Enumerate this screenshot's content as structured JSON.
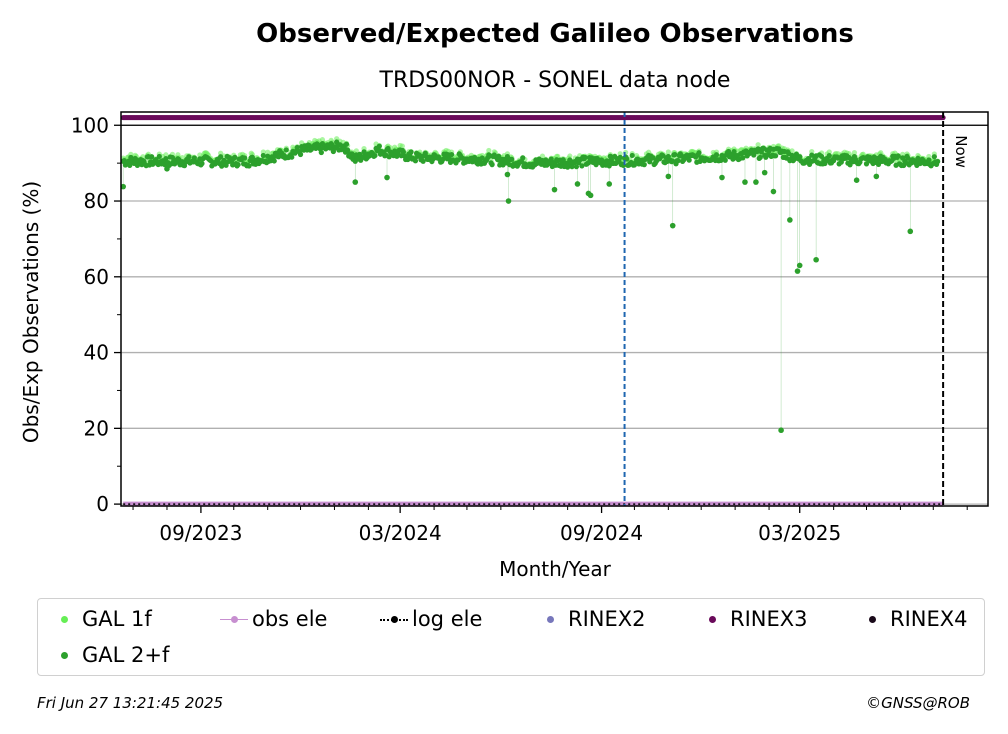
{
  "chart_data": {
    "type": "scatter",
    "title": "Observed/Expected Galileo Observations",
    "subtitle": "TRDS00NOR - SONEL data node",
    "xlabel": "Month/Year",
    "ylabel": "Obs/Exp Observations (%)",
    "x_tick_labels": [
      "09/2023",
      "03/2024",
      "09/2024",
      "03/2025"
    ],
    "y_ticks": [
      0,
      20,
      40,
      60,
      80,
      100
    ],
    "ylim": [
      -0.5,
      103.5
    ],
    "xlim": [
      "2023-06-20",
      "2025-08-20"
    ],
    "grid": "y",
    "now_label": "Now",
    "now_date": "2025-07-10",
    "event_date": "2024-09-22",
    "series": [
      {
        "name": "GAL 1f",
        "color": "#66ee55"
      },
      {
        "name": "GAL 2+f",
        "color": "#2ca02c",
        "daily_range": [
          "2023-06-22",
          "2025-07-05"
        ],
        "baseline_profile": [
          {
            "date": "2023-06-22",
            "value": 90.5
          },
          {
            "date": "2023-10-15",
            "value": 90.5
          },
          {
            "date": "2023-12-05",
            "value": 93.5
          },
          {
            "date": "2024-01-10",
            "value": 94.5
          },
          {
            "date": "2024-01-20",
            "value": 91.0
          },
          {
            "date": "2024-02-10",
            "value": 93.5
          },
          {
            "date": "2024-03-15",
            "value": 91.5
          },
          {
            "date": "2024-05-20",
            "value": 91.0
          },
          {
            "date": "2024-07-01",
            "value": 90.0
          },
          {
            "date": "2024-11-01",
            "value": 91.0
          },
          {
            "date": "2025-01-01",
            "value": 92.0
          },
          {
            "date": "2025-02-10",
            "value": 93.0
          },
          {
            "date": "2025-03-01",
            "value": 91.0
          },
          {
            "date": "2025-07-05",
            "value": 90.5
          }
        ],
        "outliers": [
          {
            "date": "2023-06-22",
            "value": 83.8
          },
          {
            "date": "2023-08-01",
            "value": 88.5
          },
          {
            "date": "2024-01-20",
            "value": 85.0
          },
          {
            "date": "2024-02-18",
            "value": 86.2
          },
          {
            "date": "2024-06-07",
            "value": 87.0
          },
          {
            "date": "2024-06-08",
            "value": 80.0
          },
          {
            "date": "2024-07-20",
            "value": 83.0
          },
          {
            "date": "2024-08-10",
            "value": 84.5
          },
          {
            "date": "2024-08-20",
            "value": 82.0
          },
          {
            "date": "2024-08-22",
            "value": 81.5
          },
          {
            "date": "2024-09-08",
            "value": 84.5
          },
          {
            "date": "2024-11-01",
            "value": 86.5
          },
          {
            "date": "2024-11-05",
            "value": 73.5
          },
          {
            "date": "2024-12-20",
            "value": 86.2
          },
          {
            "date": "2025-01-10",
            "value": 85.0
          },
          {
            "date": "2025-01-20",
            "value": 85.0
          },
          {
            "date": "2025-01-28",
            "value": 87.5
          },
          {
            "date": "2025-02-05",
            "value": 82.5
          },
          {
            "date": "2025-02-12",
            "value": 19.5
          },
          {
            "date": "2025-02-20",
            "value": 75.0
          },
          {
            "date": "2025-02-27",
            "value": 61.5
          },
          {
            "date": "2025-03-01",
            "value": 63.0
          },
          {
            "date": "2025-03-16",
            "value": 64.5
          },
          {
            "date": "2025-04-22",
            "value": 85.5
          },
          {
            "date": "2025-05-10",
            "value": 86.5
          },
          {
            "date": "2025-06-10",
            "value": 72.0
          }
        ]
      },
      {
        "name": "obs ele",
        "color": "#c78fd0",
        "value": 0,
        "line_range": [
          "2023-06-22",
          "2025-07-10"
        ]
      },
      {
        "name": "log ele",
        "color": "#000000",
        "value": 0,
        "line_range": [
          "2023-06-22",
          "2025-07-10"
        ]
      },
      {
        "name": "RINEX2",
        "color": "#7777bb"
      },
      {
        "name": "RINEX3",
        "color": "#6a0a5a",
        "value": 102,
        "daily_range": [
          "2023-06-22",
          "2025-07-10"
        ]
      },
      {
        "name": "RINEX4",
        "color": "#1a0a1a"
      }
    ],
    "legend_placement": "bottom"
  },
  "footer": {
    "timestamp": "Fri Jun 27 13:21:45 2025",
    "credit": "©GNSS@ROB"
  }
}
